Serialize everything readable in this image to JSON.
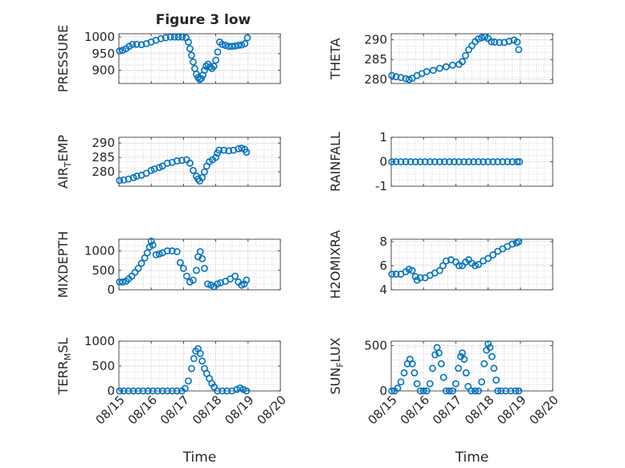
{
  "figure": {
    "title": "Figure 3 low"
  },
  "colors": {
    "marker": "#0072BD",
    "grid": "#c8c8c8",
    "axis": "#262626"
  },
  "chart_data": [
    {
      "type": "scatter",
      "id": "pressure",
      "title": "Figure 3 low",
      "ylabel": "PRESSURE",
      "xlabel": "",
      "xlim": [
        0,
        5
      ],
      "ylim": [
        860,
        1010
      ],
      "yticks": [
        900,
        950,
        1000
      ],
      "x_tick_labels": [],
      "points": [
        [
          0.02,
          958
        ],
        [
          0.12,
          960
        ],
        [
          0.22,
          965
        ],
        [
          0.32,
          972
        ],
        [
          0.42,
          978
        ],
        [
          0.55,
          978
        ],
        [
          0.7,
          977
        ],
        [
          0.85,
          980
        ],
        [
          1.0,
          985
        ],
        [
          1.15,
          990
        ],
        [
          1.3,
          995
        ],
        [
          1.45,
          998
        ],
        [
          1.6,
          1000
        ],
        [
          1.72,
          1000
        ],
        [
          1.84,
          1000
        ],
        [
          1.96,
          1000
        ],
        [
          2.08,
          998
        ],
        [
          2.15,
          985
        ],
        [
          2.2,
          965
        ],
        [
          2.25,
          945
        ],
        [
          2.3,
          925
        ],
        [
          2.35,
          905
        ],
        [
          2.4,
          888
        ],
        [
          2.45,
          878
        ],
        [
          2.5,
          872
        ],
        [
          2.55,
          875
        ],
        [
          2.6,
          885
        ],
        [
          2.65,
          900
        ],
        [
          2.7,
          912
        ],
        [
          2.76,
          918
        ],
        [
          2.82,
          910
        ],
        [
          2.88,
          905
        ],
        [
          2.94,
          912
        ],
        [
          3.0,
          930
        ],
        [
          3.06,
          955
        ],
        [
          3.12,
          985
        ],
        [
          3.2,
          978
        ],
        [
          3.3,
          975
        ],
        [
          3.4,
          972
        ],
        [
          3.5,
          972
        ],
        [
          3.6,
          973
        ],
        [
          3.7,
          975
        ],
        [
          3.8,
          976
        ],
        [
          3.9,
          980
        ],
        [
          3.98,
          998
        ]
      ]
    },
    {
      "type": "scatter",
      "id": "theta",
      "ylabel": "THETA",
      "xlabel": "",
      "xlim": [
        0,
        5
      ],
      "ylim": [
        279,
        291.5
      ],
      "yticks": [
        280,
        285,
        290
      ],
      "x_tick_labels": [],
      "points": [
        [
          0.02,
          281
        ],
        [
          0.15,
          280.7
        ],
        [
          0.3,
          280.5
        ],
        [
          0.45,
          280.2
        ],
        [
          0.55,
          280
        ],
        [
          0.65,
          280.3
        ],
        [
          0.8,
          281
        ],
        [
          0.95,
          281.5
        ],
        [
          1.1,
          282
        ],
        [
          1.3,
          282.3
        ],
        [
          1.5,
          282.8
        ],
        [
          1.7,
          283.2
        ],
        [
          1.9,
          283.6
        ],
        [
          2.1,
          283.8
        ],
        [
          2.2,
          284.5
        ],
        [
          2.3,
          286
        ],
        [
          2.4,
          287.5
        ],
        [
          2.5,
          288.5
        ],
        [
          2.6,
          289.5
        ],
        [
          2.7,
          290.2
        ],
        [
          2.8,
          290.5
        ],
        [
          2.9,
          290.7
        ],
        [
          3.0,
          290.3
        ],
        [
          3.1,
          289.5
        ],
        [
          3.2,
          289.4
        ],
        [
          3.35,
          289.3
        ],
        [
          3.5,
          289.3
        ],
        [
          3.65,
          289.6
        ],
        [
          3.8,
          289.9
        ],
        [
          3.9,
          289.4
        ],
        [
          3.95,
          287.5
        ]
      ]
    },
    {
      "type": "scatter",
      "id": "air-temp",
      "ylabel": "AIR_TEMP",
      "xlabel": "",
      "xlim": [
        0,
        5
      ],
      "ylim": [
        275,
        292
      ],
      "yticks": [
        280,
        285,
        290
      ],
      "x_tick_labels": [],
      "points": [
        [
          0.02,
          277
        ],
        [
          0.15,
          277.2
        ],
        [
          0.3,
          277.5
        ],
        [
          0.45,
          278
        ],
        [
          0.55,
          278.5
        ],
        [
          0.7,
          278.8
        ],
        [
          0.85,
          279.5
        ],
        [
          1.0,
          280.5
        ],
        [
          1.1,
          281
        ],
        [
          1.25,
          281.5
        ],
        [
          1.35,
          282
        ],
        [
          1.5,
          283
        ],
        [
          1.65,
          283.3
        ],
        [
          1.8,
          283.8
        ],
        [
          1.95,
          284
        ],
        [
          2.1,
          284.2
        ],
        [
          2.2,
          283
        ],
        [
          2.3,
          280.5
        ],
        [
          2.4,
          278.5
        ],
        [
          2.45,
          277.5
        ],
        [
          2.5,
          276.8
        ],
        [
          2.58,
          278
        ],
        [
          2.65,
          280
        ],
        [
          2.72,
          282
        ],
        [
          2.8,
          283.5
        ],
        [
          2.9,
          284.2
        ],
        [
          3.0,
          285
        ],
        [
          3.05,
          286.5
        ],
        [
          3.1,
          287.5
        ],
        [
          3.25,
          287.5
        ],
        [
          3.4,
          287.3
        ],
        [
          3.55,
          287.5
        ],
        [
          3.7,
          288
        ],
        [
          3.8,
          288.2
        ],
        [
          3.9,
          287.8
        ],
        [
          3.95,
          286.8
        ]
      ]
    },
    {
      "type": "scatter",
      "id": "rainfall",
      "ylabel": "RAINFALL",
      "xlabel": "",
      "xlim": [
        0,
        5
      ],
      "ylim": [
        -1,
        1
      ],
      "yticks": [
        -1,
        0,
        1
      ],
      "x_tick_labels": [],
      "points": [
        [
          0.02,
          0
        ],
        [
          0.15,
          0
        ],
        [
          0.3,
          0
        ],
        [
          0.45,
          0
        ],
        [
          0.6,
          0
        ],
        [
          0.75,
          0
        ],
        [
          0.9,
          0
        ],
        [
          1.05,
          0
        ],
        [
          1.2,
          0
        ],
        [
          1.35,
          0
        ],
        [
          1.5,
          0
        ],
        [
          1.65,
          0
        ],
        [
          1.8,
          0
        ],
        [
          1.95,
          0
        ],
        [
          2.1,
          0
        ],
        [
          2.25,
          0
        ],
        [
          2.4,
          0
        ],
        [
          2.55,
          0
        ],
        [
          2.7,
          0
        ],
        [
          2.85,
          0
        ],
        [
          3.0,
          0
        ],
        [
          3.15,
          0
        ],
        [
          3.3,
          0
        ],
        [
          3.45,
          0
        ],
        [
          3.6,
          0
        ],
        [
          3.75,
          0
        ],
        [
          3.9,
          0
        ],
        [
          3.97,
          0
        ]
      ]
    },
    {
      "type": "scatter",
      "id": "mixdepth",
      "ylabel": "MIXDEPTH",
      "xlabel": "",
      "xlim": [
        0,
        5
      ],
      "ylim": [
        0,
        1300
      ],
      "yticks": [
        0,
        500,
        1000
      ],
      "x_tick_labels": [],
      "points": [
        [
          0.02,
          200
        ],
        [
          0.12,
          200
        ],
        [
          0.22,
          220
        ],
        [
          0.3,
          280
        ],
        [
          0.4,
          350
        ],
        [
          0.5,
          450
        ],
        [
          0.6,
          550
        ],
        [
          0.7,
          680
        ],
        [
          0.8,
          820
        ],
        [
          0.88,
          950
        ],
        [
          0.95,
          1100
        ],
        [
          1.0,
          1250
        ],
        [
          1.05,
          1150
        ],
        [
          1.15,
          900
        ],
        [
          1.25,
          920
        ],
        [
          1.35,
          950
        ],
        [
          1.5,
          1000
        ],
        [
          1.65,
          1000
        ],
        [
          1.8,
          980
        ],
        [
          1.9,
          700
        ],
        [
          2.0,
          550
        ],
        [
          2.1,
          350
        ],
        [
          2.2,
          200
        ],
        [
          2.3,
          250
        ],
        [
          2.4,
          500
        ],
        [
          2.45,
          850
        ],
        [
          2.52,
          980
        ],
        [
          2.58,
          800
        ],
        [
          2.65,
          550
        ],
        [
          2.75,
          150
        ],
        [
          2.85,
          120
        ],
        [
          2.95,
          80
        ],
        [
          3.05,
          150
        ],
        [
          3.15,
          180
        ],
        [
          3.3,
          220
        ],
        [
          3.45,
          280
        ],
        [
          3.6,
          350
        ],
        [
          3.7,
          200
        ],
        [
          3.8,
          120
        ],
        [
          3.88,
          150
        ],
        [
          3.95,
          250
        ]
      ]
    },
    {
      "type": "scatter",
      "id": "h2omixra",
      "ylabel": "H2OMIXRA",
      "xlabel": "",
      "xlim": [
        0,
        5
      ],
      "ylim": [
        4,
        8.2
      ],
      "yticks": [
        4,
        6,
        8
      ],
      "x_tick_labels": [],
      "points": [
        [
          0.02,
          5.3
        ],
        [
          0.15,
          5.3
        ],
        [
          0.3,
          5.3
        ],
        [
          0.45,
          5.5
        ],
        [
          0.55,
          5.7
        ],
        [
          0.65,
          5.6
        ],
        [
          0.75,
          5.1
        ],
        [
          0.8,
          4.8
        ],
        [
          0.9,
          5
        ],
        [
          1.05,
          5
        ],
        [
          1.2,
          5.2
        ],
        [
          1.35,
          5.4
        ],
        [
          1.5,
          5.6
        ],
        [
          1.6,
          6
        ],
        [
          1.7,
          6.4
        ],
        [
          1.85,
          6.5
        ],
        [
          2.0,
          6.3
        ],
        [
          2.1,
          6
        ],
        [
          2.2,
          6
        ],
        [
          2.3,
          6.3
        ],
        [
          2.4,
          6.5
        ],
        [
          2.5,
          6.2
        ],
        [
          2.6,
          6
        ],
        [
          2.7,
          6.1
        ],
        [
          2.85,
          6.4
        ],
        [
          3.0,
          6.6
        ],
        [
          3.15,
          6.9
        ],
        [
          3.3,
          7.2
        ],
        [
          3.45,
          7.4
        ],
        [
          3.6,
          7.6
        ],
        [
          3.75,
          7.8
        ],
        [
          3.88,
          7.9
        ],
        [
          3.95,
          8
        ]
      ]
    },
    {
      "type": "scatter",
      "id": "terr-msl",
      "ylabel": "TERR_MSL",
      "xlabel": "Time",
      "xlim": [
        0,
        5
      ],
      "ylim": [
        0,
        1000
      ],
      "yticks": [
        0,
        500,
        1000
      ],
      "x_tick_labels": [
        "08/15",
        "08/16",
        "08/17",
        "08/18",
        "08/19",
        "08/20"
      ],
      "points": [
        [
          0.02,
          0
        ],
        [
          0.15,
          0
        ],
        [
          0.3,
          0
        ],
        [
          0.45,
          0
        ],
        [
          0.6,
          0
        ],
        [
          0.75,
          0
        ],
        [
          0.9,
          0
        ],
        [
          1.05,
          0
        ],
        [
          1.2,
          0
        ],
        [
          1.35,
          0
        ],
        [
          1.5,
          0
        ],
        [
          1.65,
          0
        ],
        [
          1.8,
          0
        ],
        [
          1.95,
          0
        ],
        [
          2.05,
          50
        ],
        [
          2.15,
          200
        ],
        [
          2.25,
          450
        ],
        [
          2.32,
          650
        ],
        [
          2.38,
          800
        ],
        [
          2.45,
          850
        ],
        [
          2.52,
          750
        ],
        [
          2.58,
          600
        ],
        [
          2.65,
          450
        ],
        [
          2.72,
          350
        ],
        [
          2.8,
          250
        ],
        [
          2.88,
          150
        ],
        [
          2.95,
          80
        ],
        [
          3.05,
          0
        ],
        [
          3.2,
          0
        ],
        [
          3.35,
          0
        ],
        [
          3.5,
          0
        ],
        [
          3.65,
          30
        ],
        [
          3.75,
          60
        ],
        [
          3.85,
          30
        ],
        [
          3.95,
          0
        ]
      ]
    },
    {
      "type": "scatter",
      "id": "sun-flux",
      "ylabel": "SUN_FLUX",
      "xlabel": "Time",
      "xlim": [
        0,
        5
      ],
      "ylim": [
        0,
        550
      ],
      "yticks": [
        0,
        500
      ],
      "x_tick_labels": [
        "08/15",
        "08/16",
        "08/17",
        "08/18",
        "08/19",
        "08/20"
      ],
      "points": [
        [
          0.02,
          0
        ],
        [
          0.1,
          0
        ],
        [
          0.2,
          30
        ],
        [
          0.3,
          100
        ],
        [
          0.4,
          200
        ],
        [
          0.5,
          300
        ],
        [
          0.58,
          350
        ],
        [
          0.65,
          300
        ],
        [
          0.72,
          200
        ],
        [
          0.8,
          80
        ],
        [
          0.9,
          0
        ],
        [
          1.0,
          0
        ],
        [
          1.1,
          0
        ],
        [
          1.2,
          80
        ],
        [
          1.28,
          250
        ],
        [
          1.36,
          400
        ],
        [
          1.42,
          480
        ],
        [
          1.48,
          420
        ],
        [
          1.55,
          300
        ],
        [
          1.62,
          150
        ],
        [
          1.7,
          0
        ],
        [
          1.8,
          0
        ],
        [
          1.9,
          0
        ],
        [
          2.0,
          80
        ],
        [
          2.08,
          250
        ],
        [
          2.15,
          380
        ],
        [
          2.2,
          420
        ],
        [
          2.26,
          350
        ],
        [
          2.32,
          200
        ],
        [
          2.38,
          50
        ],
        [
          2.48,
          0
        ],
        [
          2.6,
          0
        ],
        [
          2.7,
          0
        ],
        [
          2.8,
          100
        ],
        [
          2.88,
          300
        ],
        [
          2.95,
          450
        ],
        [
          3.0,
          520
        ],
        [
          3.06,
          480
        ],
        [
          3.12,
          380
        ],
        [
          3.18,
          250
        ],
        [
          3.25,
          120
        ],
        [
          3.3,
          0
        ],
        [
          3.4,
          0
        ],
        [
          3.55,
          0
        ],
        [
          3.7,
          0
        ],
        [
          3.85,
          0
        ],
        [
          3.95,
          0
        ]
      ]
    }
  ]
}
